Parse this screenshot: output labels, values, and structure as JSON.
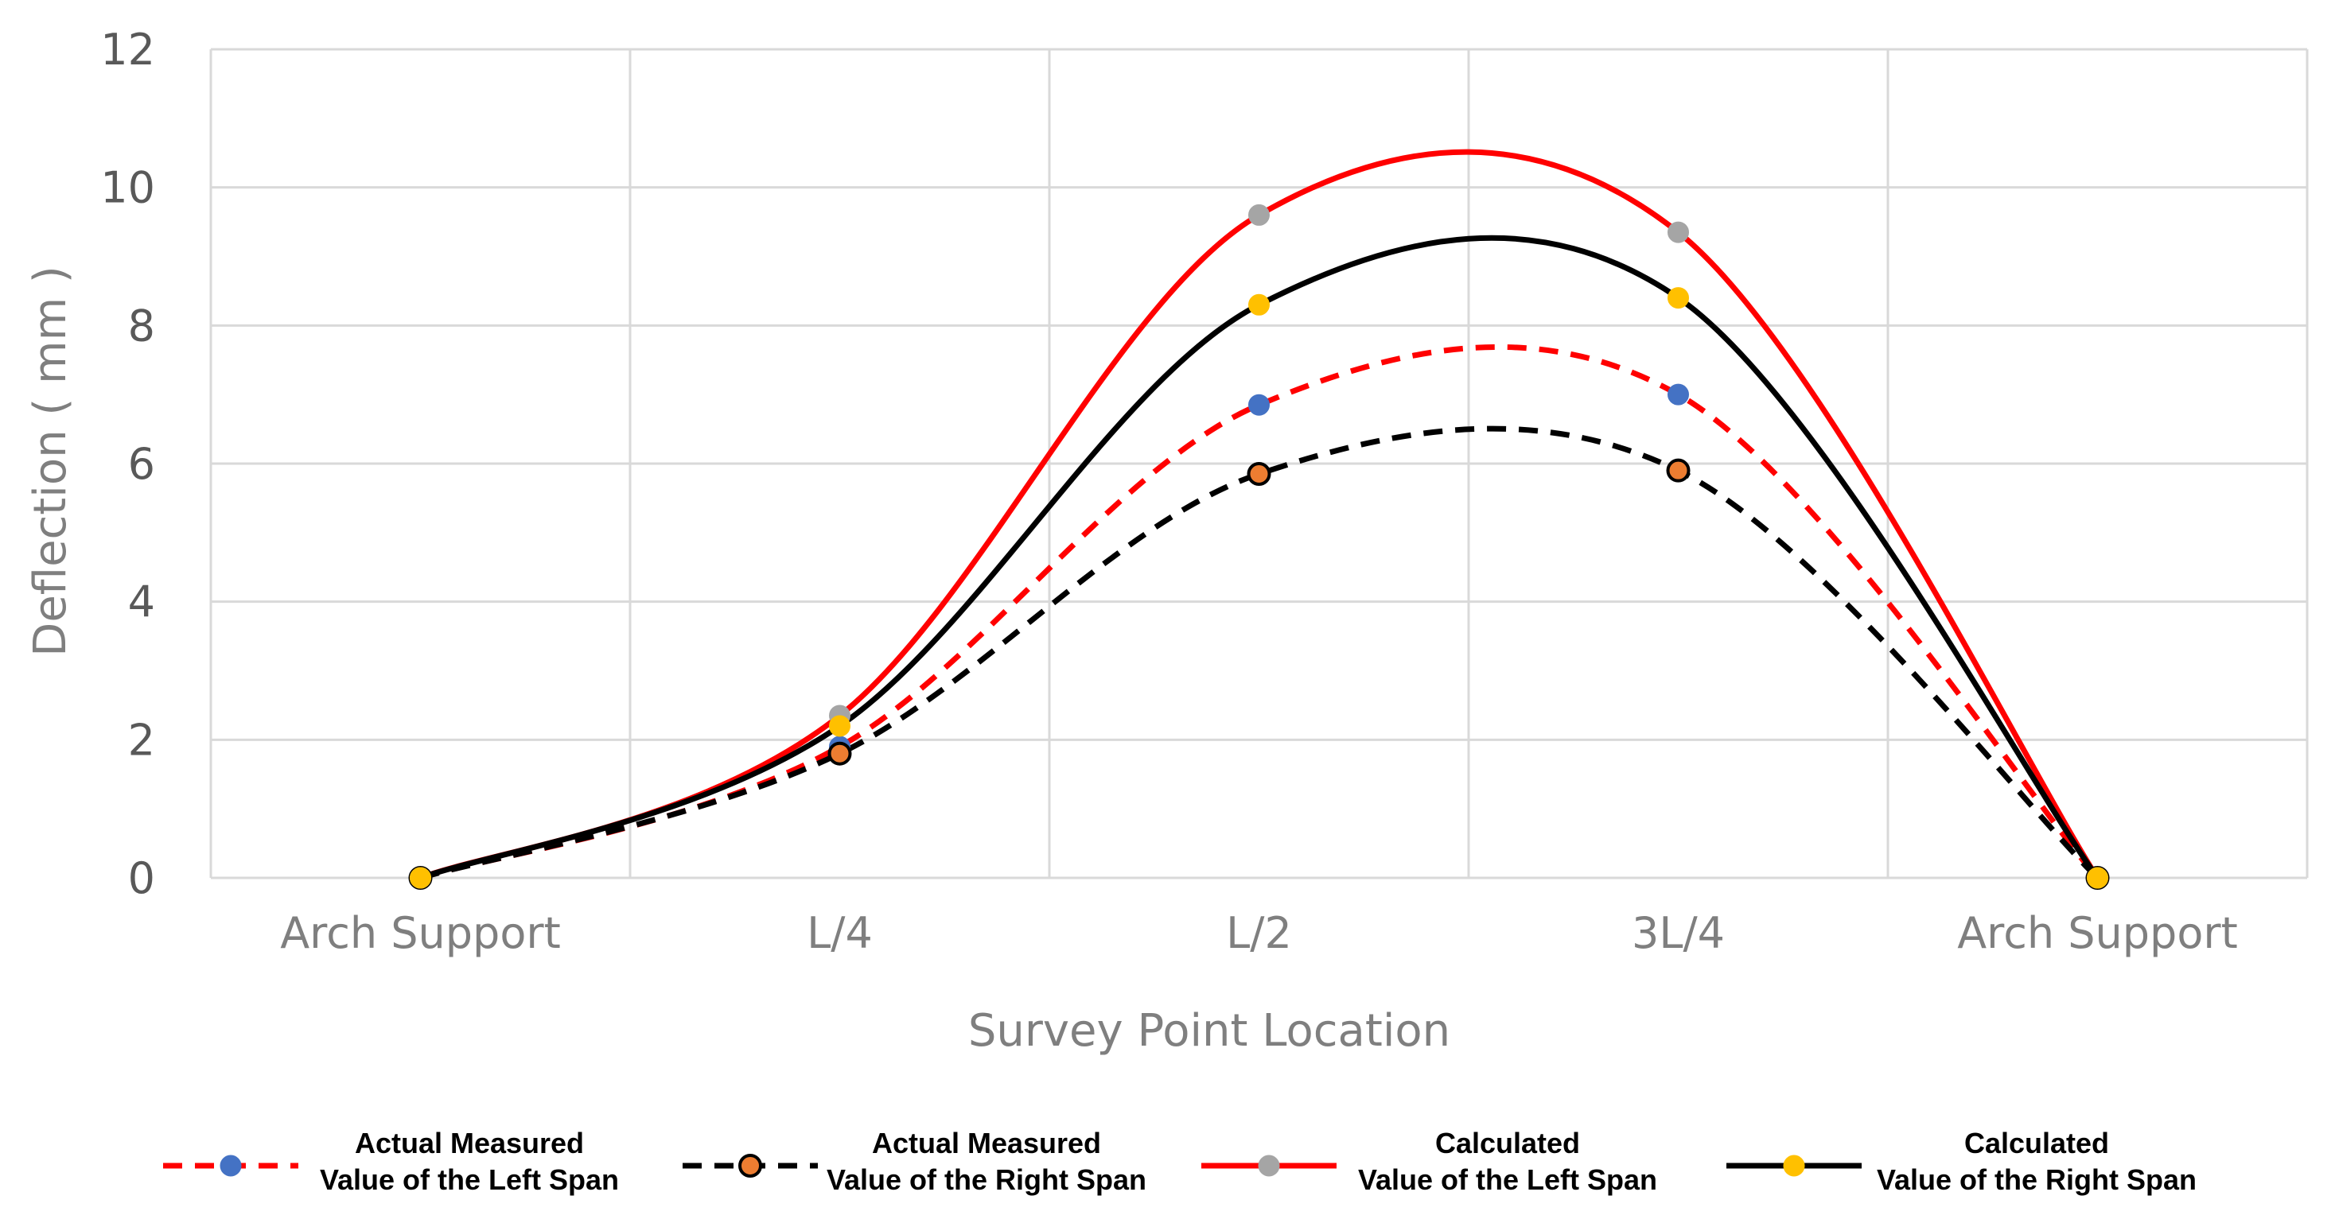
{
  "chart_data": {
    "type": "line",
    "title": "",
    "xlabel": "Survey Point Location",
    "ylabel": "Deflection ( mm )",
    "categories": [
      "Arch Support",
      "L/4",
      "L/2",
      "3L/4",
      "Arch Support"
    ],
    "ylim": [
      0,
      12
    ],
    "yticks": [
      0,
      2,
      4,
      6,
      8,
      10,
      12
    ],
    "grid": true,
    "legend_position": "bottom",
    "series": [
      {
        "name_line1": "Actual Measured",
        "name_line2": "Value of the Left Span",
        "values": [
          0,
          1.9,
          6.85,
          7.0,
          0
        ],
        "line_color": "#ff0000",
        "line_style": "dashed",
        "marker_color": "#4472c4",
        "marker_edge": "#4472c4"
      },
      {
        "name_line1": "Actual Measured",
        "name_line2": "Value of the Right Span",
        "values": [
          0,
          1.8,
          5.85,
          5.9,
          0
        ],
        "line_color": "#000000",
        "line_style": "dashed",
        "marker_color": "#ed7d31",
        "marker_edge": "#000000"
      },
      {
        "name_line1": "Calculated",
        "name_line2": "Value of the Left Span",
        "values": [
          0,
          2.35,
          9.6,
          9.35,
          0
        ],
        "line_color": "#ff0000",
        "line_style": "solid",
        "marker_color": "#a5a5a5",
        "marker_edge": "#a5a5a5"
      },
      {
        "name_line1": "Calculated",
        "name_line2": "Value of the Right Span",
        "values": [
          0,
          2.2,
          8.3,
          8.4,
          0
        ],
        "line_color": "#000000",
        "line_style": "solid",
        "marker_color": "#ffc000",
        "marker_edge": "#ffc000"
      }
    ]
  }
}
